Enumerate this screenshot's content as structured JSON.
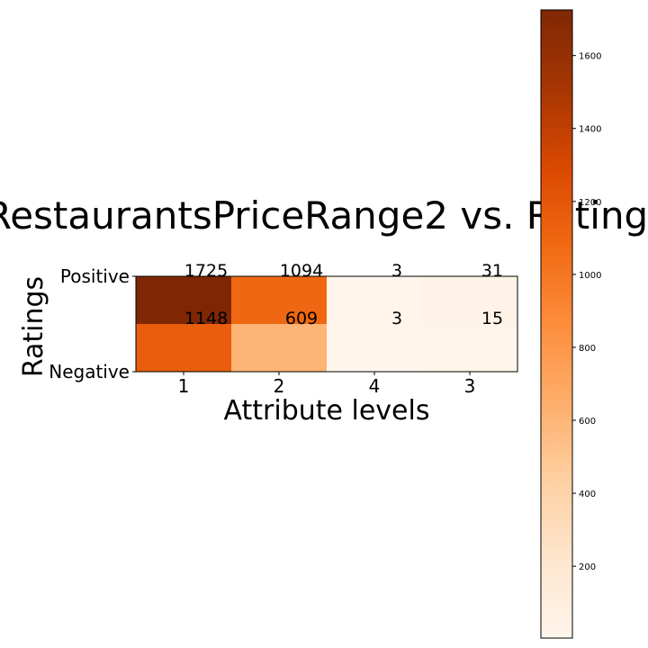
{
  "chart_data": {
    "type": "heatmap",
    "title": "RestaurantsPriceRange2 vs. Ratings",
    "xlabel": "Attribute levels",
    "ylabel": "Ratings",
    "x_categories": [
      "1",
      "2",
      "4",
      "3"
    ],
    "y_categories": [
      "Positive",
      "Negative"
    ],
    "values": [
      [
        1725,
        1094,
        3,
        31
      ],
      [
        1148,
        609,
        3,
        15
      ]
    ],
    "colormap": "Oranges",
    "colorbar": {
      "min": 3,
      "max": 1725,
      "ticks": [
        200,
        400,
        600,
        800,
        1000,
        1200,
        1400,
        1600
      ]
    }
  }
}
